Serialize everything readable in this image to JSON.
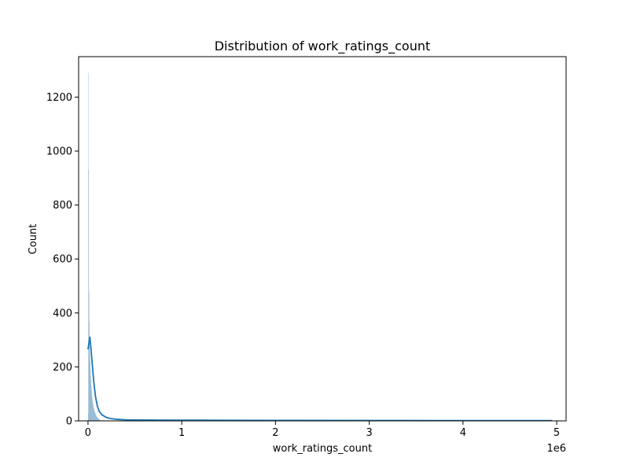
{
  "chart_data": {
    "type": "bar",
    "title": "Distribution of work_ratings_count",
    "xlabel": "work_ratings_count",
    "ylabel": "Count",
    "x_offset_label": "1e6",
    "xlim": [
      -100000,
      5100000
    ],
    "ylim": [
      0,
      1350
    ],
    "x_ticks": [
      0,
      1000000,
      2000000,
      3000000,
      4000000,
      5000000
    ],
    "x_tick_labels": [
      "0",
      "1",
      "2",
      "3",
      "4",
      "5"
    ],
    "y_ticks": [
      0,
      200,
      400,
      600,
      800,
      1000,
      1200
    ],
    "y_tick_labels": [
      "0",
      "200",
      "400",
      "600",
      "800",
      "1000",
      "1200"
    ],
    "grid": false,
    "bar_color": "#7aa7c7",
    "kde_color": "#1f77b4",
    "histogram": {
      "bin_starts": [
        0,
        3000,
        6000,
        9000,
        12000,
        15000,
        18000,
        21000,
        24000,
        27000,
        30000,
        33000,
        36000,
        39000,
        42000,
        45000,
        48000,
        51000,
        54000,
        57000,
        60000,
        63000,
        66000,
        69000,
        72000,
        75000,
        78000,
        81000,
        84000,
        87000,
        90000,
        93000,
        96000,
        99000,
        102000,
        105000,
        108000,
        111000,
        114000,
        117000,
        120000,
        130000,
        140000,
        150000,
        160000,
        170000,
        180000,
        200000,
        220000,
        250000,
        300000,
        400000,
        600000
      ],
      "bin_width": 3000,
      "counts": [
        30,
        1290,
        930,
        480,
        370,
        300,
        250,
        220,
        190,
        165,
        150,
        130,
        115,
        100,
        90,
        80,
        72,
        64,
        58,
        52,
        47,
        43,
        39,
        35,
        32,
        29,
        26,
        23,
        21,
        19,
        17,
        15,
        13,
        12,
        11,
        10,
        9,
        8,
        7,
        7,
        6,
        5,
        4,
        4,
        3,
        3,
        2,
        2,
        2,
        1,
        1,
        1,
        1
      ]
    },
    "kde": {
      "x": [
        0,
        20000,
        40000,
        60000,
        80000,
        100000,
        120000,
        150000,
        200000,
        250000,
        300000,
        400000,
        500000,
        750000,
        1000000,
        1500000,
        2000000,
        3000000,
        4000000,
        4950000
      ],
      "y": [
        265,
        312,
        235,
        150,
        90,
        55,
        35,
        22,
        12,
        8,
        6,
        4,
        3.5,
        3,
        2.5,
        2,
        1.8,
        1.5,
        1.2,
        1
      ]
    }
  }
}
